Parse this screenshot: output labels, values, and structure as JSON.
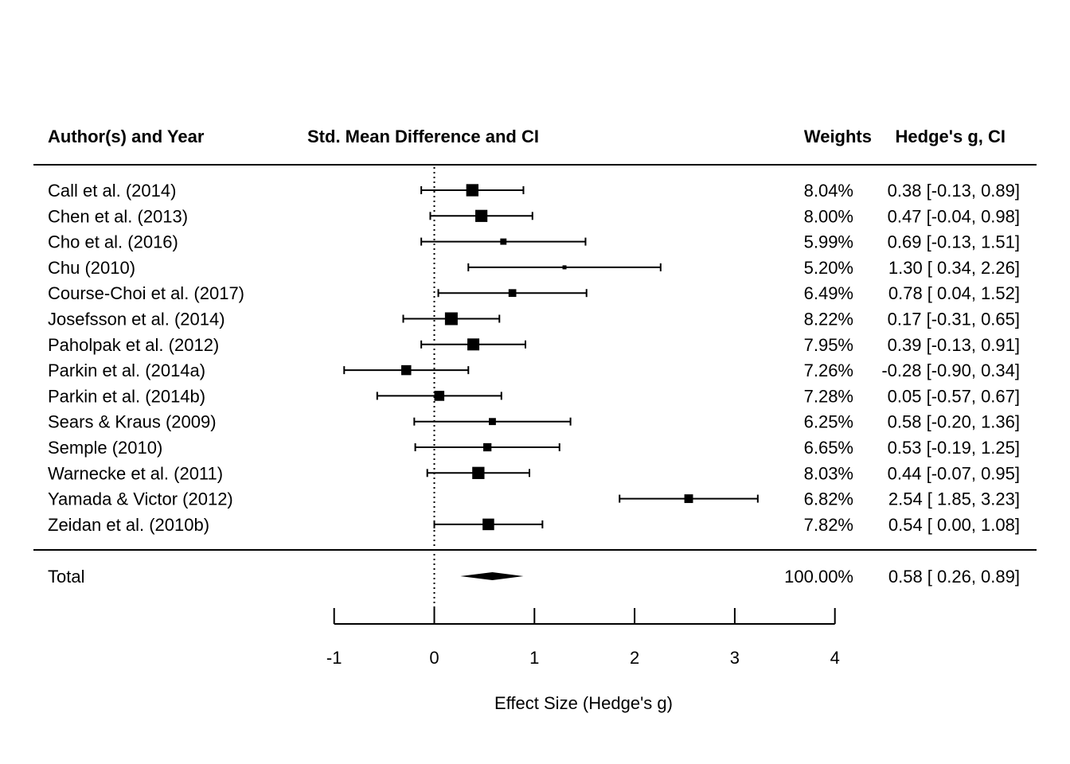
{
  "chart_data": {
    "type": "forest",
    "headers": {
      "study": "Author(s) and Year",
      "plot": "Std. Mean Difference and CI",
      "weights": "Weights",
      "estimate": "Hedge's g, CI"
    },
    "studies": [
      {
        "label": "Call et al. (2014)",
        "g": 0.38,
        "lower": -0.13,
        "upper": 0.89,
        "weight": 8.04,
        "weight_text": "8.04%",
        "ci_text": "0.38 [-0.13, 0.89]"
      },
      {
        "label": "Chen et al. (2013)",
        "g": 0.47,
        "lower": -0.04,
        "upper": 0.98,
        "weight": 8.0,
        "weight_text": "8.00%",
        "ci_text": "0.47 [-0.04, 0.98]"
      },
      {
        "label": "Cho et al. (2016)",
        "g": 0.69,
        "lower": -0.13,
        "upper": 1.51,
        "weight": 5.99,
        "weight_text": "5.99%",
        "ci_text": "0.69 [-0.13, 1.51]"
      },
      {
        "label": "Chu (2010)",
        "g": 1.3,
        "lower": 0.34,
        "upper": 2.26,
        "weight": 5.2,
        "weight_text": "5.20%",
        "ci_text": "1.30 [ 0.34, 2.26]"
      },
      {
        "label": "Course-Choi et al. (2017)",
        "g": 0.78,
        "lower": 0.04,
        "upper": 1.52,
        "weight": 6.49,
        "weight_text": "6.49%",
        "ci_text": "0.78 [ 0.04, 1.52]"
      },
      {
        "label": "Josefsson et al. (2014)",
        "g": 0.17,
        "lower": -0.31,
        "upper": 0.65,
        "weight": 8.22,
        "weight_text": "8.22%",
        "ci_text": "0.17 [-0.31, 0.65]"
      },
      {
        "label": "Paholpak et al. (2012)",
        "g": 0.39,
        "lower": -0.13,
        "upper": 0.91,
        "weight": 7.95,
        "weight_text": "7.95%",
        "ci_text": "0.39 [-0.13, 0.91]"
      },
      {
        "label": "Parkin et al. (2014a)",
        "g": -0.28,
        "lower": -0.9,
        "upper": 0.34,
        "weight": 7.26,
        "weight_text": "7.26%",
        "ci_text": "-0.28 [-0.90, 0.34]"
      },
      {
        "label": "Parkin et al. (2014b)",
        "g": 0.05,
        "lower": -0.57,
        "upper": 0.67,
        "weight": 7.28,
        "weight_text": "7.28%",
        "ci_text": "0.05 [-0.57, 0.67]"
      },
      {
        "label": "Sears & Kraus (2009)",
        "g": 0.58,
        "lower": -0.2,
        "upper": 1.36,
        "weight": 6.25,
        "weight_text": "6.25%",
        "ci_text": "0.58 [-0.20, 1.36]"
      },
      {
        "label": "Semple (2010)",
        "g": 0.53,
        "lower": -0.19,
        "upper": 1.25,
        "weight": 6.65,
        "weight_text": "6.65%",
        "ci_text": "0.53 [-0.19, 1.25]"
      },
      {
        "label": "Warnecke et al. (2011)",
        "g": 0.44,
        "lower": -0.07,
        "upper": 0.95,
        "weight": 8.03,
        "weight_text": "8.03%",
        "ci_text": "0.44 [-0.07, 0.95]"
      },
      {
        "label": "Yamada & Victor (2012)",
        "g": 2.54,
        "lower": 1.85,
        "upper": 3.23,
        "weight": 6.82,
        "weight_text": "6.82%",
        "ci_text": "2.54 [ 1.85, 3.23]"
      },
      {
        "label": "Zeidan et al. (2010b)",
        "g": 0.54,
        "lower": 0.0,
        "upper": 1.08,
        "weight": 7.82,
        "weight_text": "7.82%",
        "ci_text": "0.54 [ 0.00, 1.08]"
      }
    ],
    "total": {
      "label": "Total",
      "g": 0.58,
      "lower": 0.26,
      "upper": 0.89,
      "weight_text": "100.00%",
      "ci_text": "0.58 [ 0.26, 0.89]"
    },
    "xaxis": {
      "label": "Effect Size (Hedge's g)",
      "ticks": [
        -1,
        0,
        1,
        2,
        3,
        4
      ],
      "tick_labels": [
        "-1",
        "0",
        "1",
        "2",
        "3",
        "4"
      ],
      "range": [
        -1,
        4
      ]
    },
    "reference_line": 0
  }
}
